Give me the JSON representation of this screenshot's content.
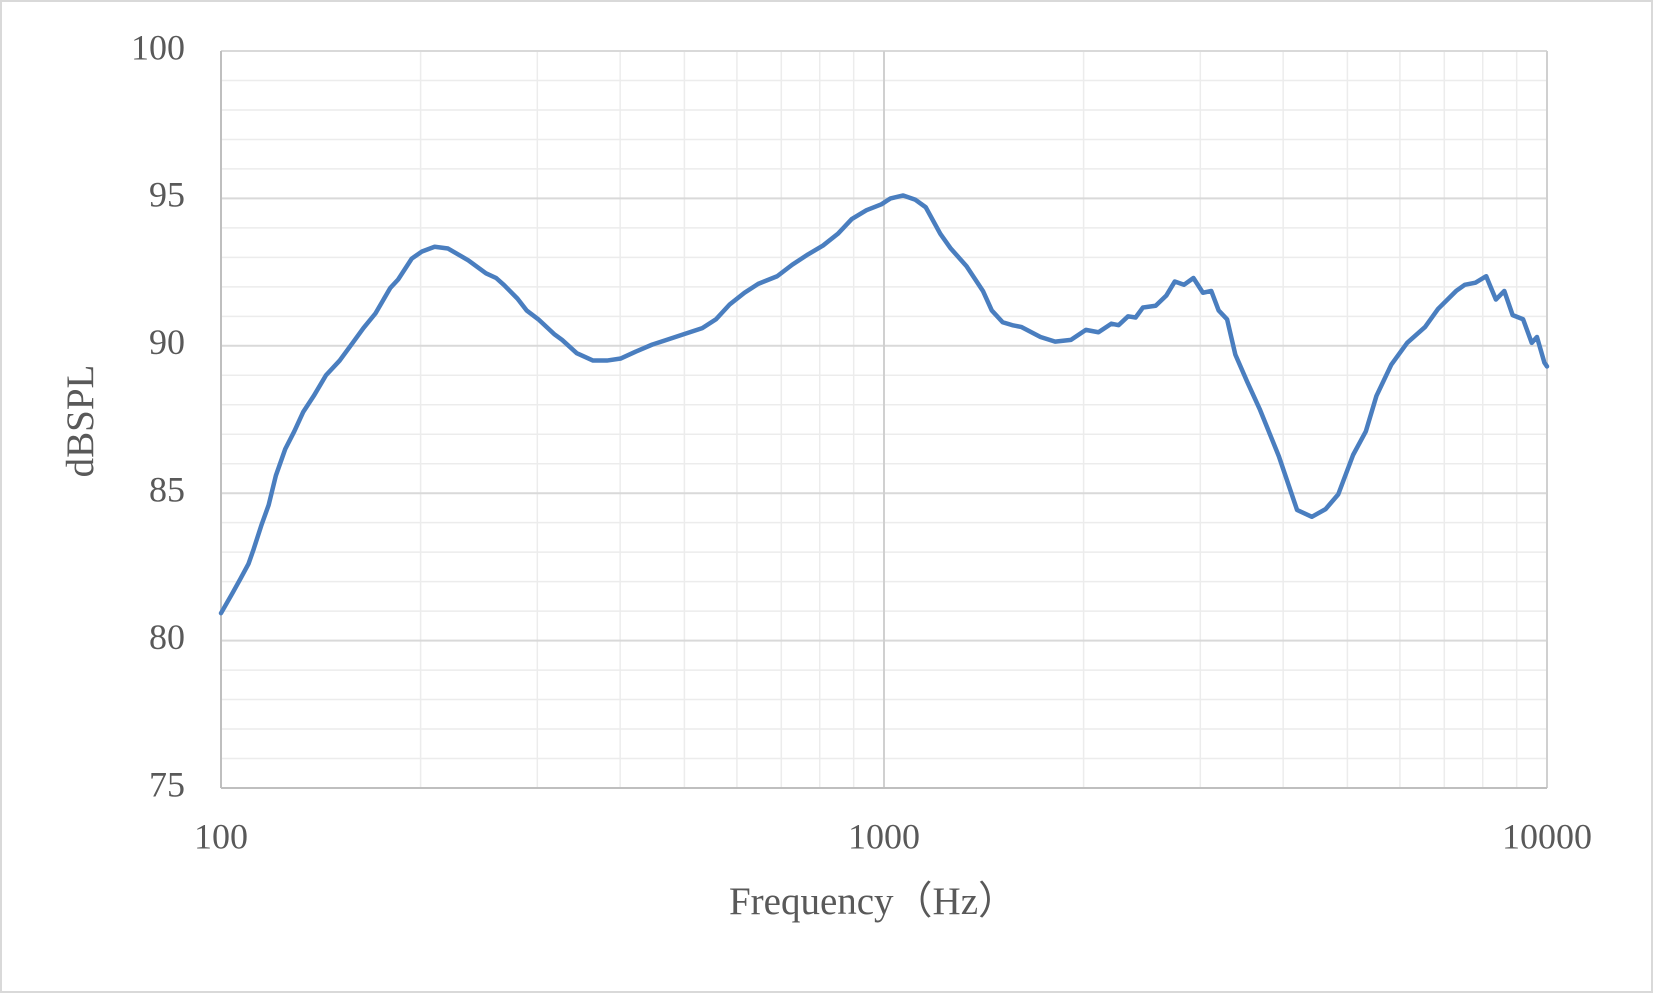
{
  "chart_data": {
    "type": "line",
    "x_label": "Frequency（Hz）",
    "y_label": "dBSPL",
    "xlog": true,
    "grid": true,
    "minor_grid": true,
    "xlim": [
      100,
      10000
    ],
    "xticks": [
      100,
      1000,
      10000
    ],
    "ylim": [
      75,
      100
    ],
    "yticks": [
      75,
      80,
      85,
      90,
      95,
      100
    ],
    "x": [
      100,
      104,
      107,
      110,
      112,
      115,
      118,
      121,
      125,
      129,
      133,
      138,
      144,
      151,
      158,
      164,
      171,
      180,
      185,
      194,
      201,
      210,
      220,
      236,
      251,
      260,
      267,
      280,
      289,
      301,
      318,
      327,
      344,
      364,
      382,
      401,
      422,
      447,
      467,
      500,
      532,
      558,
      585,
      616,
      646,
      690,
      727,
      768,
      809,
      852,
      894,
      941,
      991,
      1023,
      1069,
      1114,
      1156,
      1216,
      1261,
      1332,
      1410,
      1454,
      1510,
      1561,
      1610,
      1722,
      1812,
      1914,
      2016,
      2106,
      2202,
      2259,
      2334,
      2396,
      2458,
      2569,
      2665,
      2745,
      2834,
      2929,
      3027,
      3116,
      3197,
      3292,
      3388,
      3527,
      3686,
      3941,
      4090,
      4198,
      4419,
      4635,
      4843,
      5100,
      5331,
      5530,
      5823,
      6154,
      6549,
      6849,
      7293,
      7515,
      7800,
      8097,
      8185,
      8374,
      8622,
      8875,
      9203,
      9483,
      9657,
      9910,
      10000
    ],
    "series": [
      {
        "name": "dBSPL",
        "color": "#4a7ebf",
        "values": [
          80.93,
          81.6,
          82.1,
          82.6,
          83.1,
          83.9,
          84.6,
          85.6,
          86.5,
          87.1,
          87.75,
          88.3,
          89.0,
          89.5,
          90.1,
          90.6,
          91.1,
          91.96,
          92.25,
          92.96,
          93.2,
          93.36,
          93.3,
          92.9,
          92.46,
          92.3,
          92.07,
          91.6,
          91.2,
          90.9,
          90.4,
          90.2,
          89.75,
          89.5,
          89.5,
          89.57,
          89.8,
          90.04,
          90.18,
          90.4,
          90.6,
          90.9,
          91.4,
          91.8,
          92.1,
          92.36,
          92.75,
          93.1,
          93.4,
          93.8,
          94.3,
          94.6,
          94.8,
          95.0,
          95.1,
          94.96,
          94.7,
          93.8,
          93.3,
          92.7,
          91.86,
          91.2,
          90.8,
          90.7,
          90.64,
          90.3,
          90.14,
          90.2,
          90.54,
          90.46,
          90.75,
          90.7,
          91.0,
          90.96,
          91.3,
          91.36,
          91.7,
          92.18,
          92.07,
          92.3,
          91.8,
          91.86,
          91.2,
          90.9,
          89.7,
          88.8,
          87.86,
          86.25,
          85.18,
          84.43,
          84.2,
          84.46,
          84.96,
          86.3,
          87.1,
          88.3,
          89.36,
          90.1,
          90.64,
          91.25,
          91.86,
          92.07,
          92.14,
          92.36,
          92.1,
          91.57,
          91.86,
          91.04,
          90.9,
          90.1,
          90.3,
          89.43,
          89.3
        ]
      }
    ]
  }
}
